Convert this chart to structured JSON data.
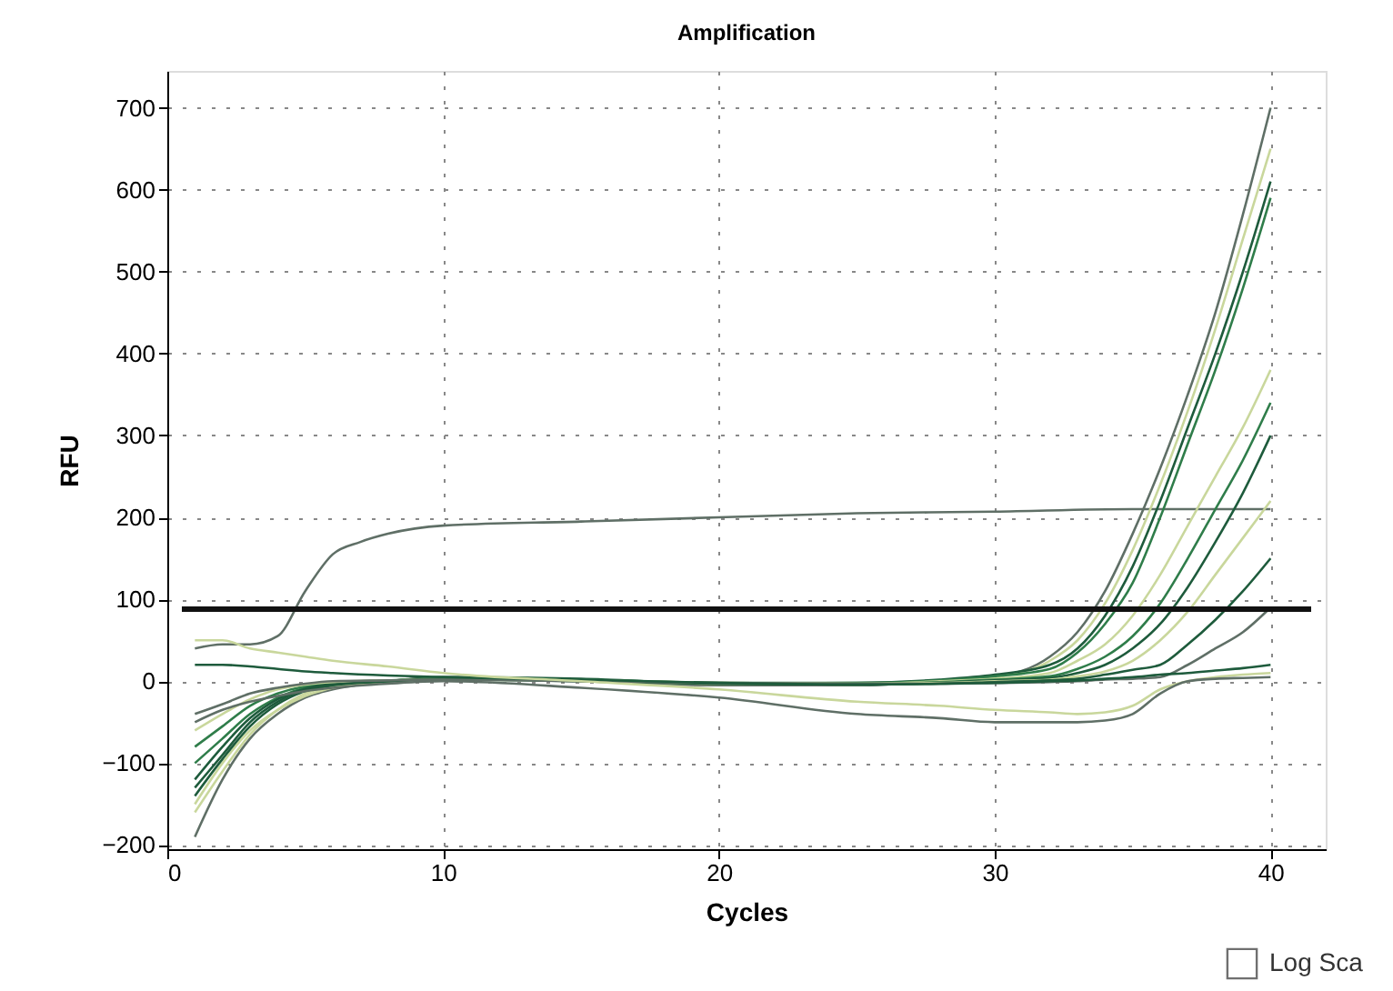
{
  "chart_data": {
    "type": "line",
    "title": "Amplification",
    "xlabel": "Cycles",
    "ylabel": "RFU",
    "x": [
      1,
      2,
      3,
      4,
      5,
      6,
      8,
      10,
      15,
      20,
      25,
      28,
      30,
      32,
      33,
      34,
      35,
      36,
      37,
      38,
      39,
      40
    ],
    "xlim": [
      0,
      42
    ],
    "xticks": [
      0,
      10,
      20,
      30,
      40
    ],
    "ylim": [
      -205,
      745
    ],
    "yticks": [
      -200,
      -100,
      0,
      100,
      200,
      300,
      400,
      500,
      600,
      700
    ],
    "grid": true,
    "marker": "none",
    "line_style": "solid",
    "ref_lines": [
      {
        "axis": "y",
        "value": 88,
        "color": "#111111"
      }
    ],
    "annotations": [
      "Log Sca"
    ],
    "series": [
      {
        "color": "#5f6f66",
        "x": [
          1,
          2,
          3,
          4,
          5,
          6,
          7,
          8,
          10,
          15,
          20,
          25,
          30,
          35,
          40
        ],
        "values": [
          40,
          45,
          45,
          55,
          110,
          155,
          170,
          180,
          190,
          195,
          200,
          205,
          207,
          210,
          210
        ]
      },
      {
        "color": "#5f6f66",
        "values": [
          -190,
          -120,
          -70,
          -40,
          -20,
          -10,
          0,
          5,
          0,
          -5,
          -5,
          0,
          5,
          30,
          60,
          110,
          180,
          260,
          350,
          450,
          570,
          700
        ]
      },
      {
        "color": "#c9d79c",
        "values": [
          -150,
          -100,
          -60,
          -35,
          -18,
          -8,
          0,
          4,
          2,
          -3,
          -3,
          0,
          5,
          25,
          50,
          95,
          160,
          240,
          330,
          430,
          540,
          650
        ]
      },
      {
        "color": "#1e5b3c",
        "values": [
          -130,
          -90,
          -50,
          -25,
          -10,
          -5,
          0,
          5,
          3,
          -3,
          -2,
          2,
          8,
          20,
          40,
          80,
          140,
          220,
          310,
          400,
          500,
          610
        ]
      },
      {
        "color": "#2f7d4a",
        "values": [
          -100,
          -70,
          -40,
          -20,
          -8,
          -3,
          0,
          4,
          2,
          -2,
          -2,
          1,
          6,
          15,
          35,
          70,
          120,
          200,
          290,
          380,
          480,
          590
        ]
      },
      {
        "color": "#c9d79c",
        "values": [
          -160,
          -110,
          -65,
          -35,
          -15,
          -6,
          0,
          3,
          1,
          -3,
          -4,
          0,
          3,
          10,
          25,
          45,
          80,
          130,
          190,
          250,
          310,
          380
        ]
      },
      {
        "color": "#2f7d4a",
        "values": [
          -80,
          -55,
          -30,
          -15,
          -6,
          -2,
          1,
          3,
          1,
          -2,
          -3,
          -1,
          2,
          6,
          15,
          30,
          55,
          95,
          150,
          210,
          270,
          340
        ]
      },
      {
        "color": "#1e5b3c",
        "values": [
          -120,
          -80,
          -45,
          -22,
          -9,
          -3,
          0,
          3,
          1,
          -3,
          -4,
          -2,
          1,
          4,
          10,
          20,
          40,
          70,
          115,
          170,
          230,
          300
        ]
      },
      {
        "color": "#c9d79c",
        "values": [
          -60,
          -40,
          -22,
          -10,
          -4,
          -1,
          1,
          2,
          1,
          -2,
          -3,
          -2,
          0,
          2,
          6,
          12,
          25,
          50,
          85,
          130,
          175,
          220
        ]
      },
      {
        "color": "#1e5b3c",
        "values": [
          -140,
          -95,
          -55,
          -28,
          -12,
          -5,
          0,
          2,
          0,
          -3,
          -4,
          -3,
          -1,
          1,
          3,
          8,
          14,
          20,
          45,
          75,
          110,
          150
        ]
      },
      {
        "color": "#5f6f66",
        "values": [
          -40,
          -28,
          -15,
          -8,
          -3,
          0,
          1,
          2,
          0,
          -2,
          -3,
          -3,
          -2,
          -1,
          0,
          2,
          3,
          5,
          20,
          40,
          60,
          90
        ]
      },
      {
        "color": "#1e5b3c",
        "values": [
          20,
          20,
          18,
          15,
          12,
          10,
          7,
          5,
          2,
          -2,
          -4,
          -3,
          -2,
          0,
          1,
          3,
          5,
          8,
          10,
          13,
          16,
          20
        ]
      },
      {
        "color": "#c9d79c",
        "values": [
          50,
          50,
          40,
          35,
          30,
          25,
          18,
          10,
          0,
          -10,
          -25,
          -30,
          -35,
          -38,
          -40,
          -38,
          -30,
          -10,
          0,
          5,
          8,
          10
        ]
      },
      {
        "color": "#5f6f66",
        "values": [
          -50,
          -35,
          -25,
          -18,
          -12,
          -8,
          -3,
          0,
          -8,
          -20,
          -40,
          -45,
          -50,
          -50,
          -50,
          -48,
          -40,
          -15,
          0,
          3,
          4,
          5
        ]
      }
    ]
  }
}
